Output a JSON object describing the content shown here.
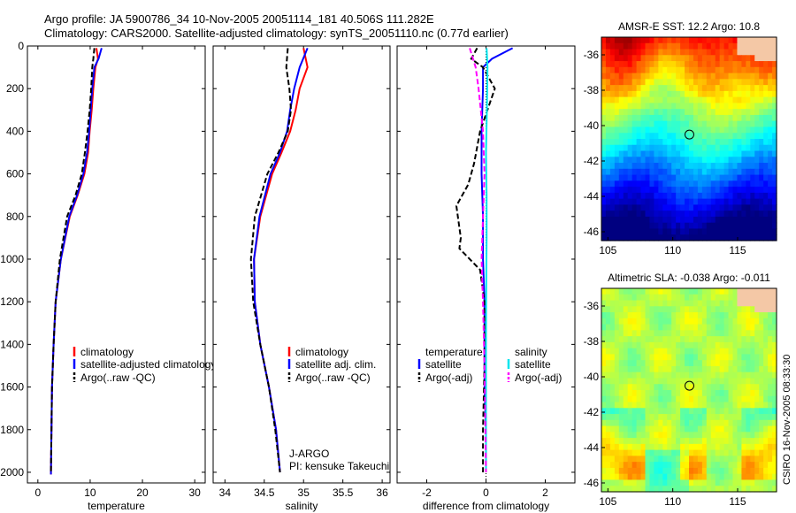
{
  "header": {
    "line1": "Argo profile: JA 5900786_34 10-Nov-2005 20051114_181 40.506S 111.282E",
    "line2": "Climatology: CARS2000. Satellite-adjusted climatology: synTS_20051110.nc (0.77d earlier)"
  },
  "credit": "CSIRO 16-Nov-2005 08:33:30",
  "colors": {
    "clim": "#ff0000",
    "sat": "#0000ff",
    "argo": "#000000",
    "sat_sal": "#00e5ee",
    "argo_sal": "#ff00ff"
  },
  "chart_data": [
    {
      "type": "line",
      "id": "temperature",
      "xlabel": "temperature",
      "ylabel": "",
      "xlim": [
        -2,
        32
      ],
      "ylim": [
        2050,
        0
      ],
      "xticks": [
        0,
        10,
        20,
        30
      ],
      "yticks": [
        0,
        200,
        400,
        600,
        800,
        1000,
        1200,
        1400,
        1600,
        1800,
        2000
      ],
      "series": [
        {
          "name": "climatology",
          "style": "solid",
          "color": "#ff0000",
          "x": [
            11.2,
            11.5,
            11.0,
            10.6,
            10.3,
            9.9,
            9.6,
            8.9,
            7.6,
            6.1,
            4.4,
            3.4,
            3.0,
            2.7,
            2.6,
            2.5,
            2.5
          ],
          "y": [
            10,
            60,
            100,
            200,
            300,
            400,
            500,
            600,
            700,
            800,
            1000,
            1200,
            1400,
            1600,
            1800,
            2000,
            2010
          ]
        },
        {
          "name": "satellite-adjusted climatology",
          "style": "solid",
          "color": "#0000ff",
          "x": [
            12.2,
            11.6,
            10.8,
            10.4,
            10.1,
            9.8,
            9.4,
            8.7,
            7.5,
            6.0,
            4.4,
            3.4,
            3.0,
            2.7,
            2.6,
            2.5,
            2.5
          ],
          "y": [
            10,
            60,
            100,
            200,
            300,
            400,
            500,
            600,
            700,
            800,
            1000,
            1200,
            1400,
            1600,
            1800,
            2000,
            2010
          ]
        },
        {
          "name": "Argo(..raw -QC)",
          "style": "dashed",
          "color": "#000000",
          "x": [
            10.8,
            10.6,
            10.4,
            10.2,
            9.9,
            9.5,
            9.0,
            8.4,
            7.2,
            5.6,
            4.2,
            3.4,
            3.0,
            2.7,
            2.6,
            2.5
          ],
          "y": [
            10,
            60,
            100,
            200,
            300,
            400,
            500,
            600,
            700,
            800,
            1000,
            1200,
            1400,
            1600,
            1800,
            2000
          ]
        }
      ],
      "legend": [
        "climatology",
        "satellite-adjusted climatology",
        "Argo(..raw -QC)"
      ]
    },
    {
      "type": "line",
      "id": "salinity",
      "xlabel": "salinity",
      "ylabel": "",
      "xlim": [
        33.85,
        36.1
      ],
      "ylim": [
        2050,
        0
      ],
      "xticks": [
        34,
        34.5,
        35,
        35.5,
        36
      ],
      "series": [
        {
          "name": "climatology",
          "style": "solid",
          "color": "#ff0000",
          "x": [
            35.0,
            35.05,
            34.95,
            34.9,
            34.83,
            34.72,
            34.6,
            34.45,
            34.37,
            34.38,
            34.45,
            34.56,
            34.65,
            34.7
          ],
          "y": [
            10,
            100,
            200,
            300,
            400,
            500,
            600,
            800,
            1000,
            1200,
            1400,
            1600,
            1800,
            2000
          ]
        },
        {
          "name": "satellite adj. clim.",
          "style": "solid",
          "color": "#0000ff",
          "x": [
            35.05,
            34.95,
            34.88,
            34.83,
            34.79,
            34.7,
            34.58,
            34.44,
            34.37,
            34.38,
            34.45,
            34.56,
            34.65,
            34.7
          ],
          "y": [
            10,
            100,
            200,
            300,
            400,
            500,
            600,
            800,
            1000,
            1200,
            1400,
            1600,
            1800,
            2000
          ]
        },
        {
          "name": "Argo(..raw -QC)",
          "style": "dashed",
          "color": "#000000",
          "x": [
            34.8,
            34.78,
            34.82,
            34.84,
            34.8,
            34.68,
            34.54,
            34.38,
            34.33,
            34.36,
            34.45,
            34.56,
            34.64,
            34.7
          ],
          "y": [
            10,
            100,
            200,
            300,
            400,
            500,
            600,
            800,
            1000,
            1200,
            1400,
            1600,
            1800,
            2000
          ]
        }
      ],
      "legend": [
        "climatology",
        "satellite adj. clim.",
        "Argo(..raw -QC)"
      ],
      "annotation": [
        "J-ARGO",
        "PI: kensuke Takeuchi"
      ]
    },
    {
      "type": "line",
      "id": "difference",
      "xlabel": "difference from climatology",
      "ylabel": "",
      "xlim": [
        -3,
        3
      ],
      "ylim": [
        2050,
        0
      ],
      "xticks": [
        -2,
        0,
        2
      ],
      "zero_line": true,
      "series": [
        {
          "name": "temperature satellite",
          "style": "solid",
          "color": "#0000ff",
          "x": [
            0.9,
            0.2,
            -0.1,
            -0.1,
            -0.15,
            -0.15,
            -0.1,
            -0.1,
            -0.05,
            -0.05,
            -0.05,
            0.0,
            0.0
          ],
          "y": [
            10,
            60,
            100,
            200,
            400,
            600,
            800,
            1000,
            1200,
            1400,
            1600,
            1800,
            2000
          ]
        },
        {
          "name": "temperature Argo(-adj)",
          "style": "dashed",
          "color": "#000000",
          "x": [
            -0.3,
            -0.5,
            -0.1,
            0.3,
            -0.2,
            -0.4,
            -0.6,
            -1.0,
            -0.85,
            -0.9,
            -0.2,
            -0.05,
            -0.05,
            -0.1,
            -0.1
          ],
          "y": [
            10,
            60,
            100,
            200,
            400,
            550,
            650,
            750,
            900,
            950,
            1050,
            1200,
            1500,
            1800,
            2000
          ]
        },
        {
          "name": "salinity satellite",
          "style": "solid",
          "color": "#00e5ee",
          "x": [
            0.02,
            0.05,
            0.03,
            0.0,
            0.02,
            0.02,
            0.01,
            0.0,
            0.0,
            0.0
          ],
          "y": [
            10,
            100,
            300,
            500,
            700,
            900,
            1100,
            1400,
            1700,
            2000
          ]
        },
        {
          "name": "salinity Argo(-adj)",
          "style": "dashed",
          "color": "#ff00ff",
          "x": [
            -0.55,
            -0.35,
            -0.25,
            -0.1,
            -0.05,
            -0.1,
            -0.15,
            -0.1,
            -0.05,
            0.0
          ],
          "y": [
            10,
            100,
            200,
            400,
            600,
            800,
            1000,
            1200,
            1500,
            2000
          ]
        }
      ],
      "legend_headers": [
        "temperature",
        "salinity"
      ],
      "legend": [
        "satellite",
        "Argo(-adj)",
        "satellite",
        "Argo(-adj)"
      ]
    },
    {
      "type": "heatmap",
      "id": "sst-map",
      "title": "AMSR-E SST: 12.2 Argo: 10.8",
      "xlim": [
        104.5,
        118
      ],
      "ylim": [
        -46.5,
        -35
      ],
      "xticks": [
        105,
        110,
        115
      ],
      "yticks": [
        -36,
        -38,
        -40,
        -42,
        -44,
        -46
      ],
      "colormap": "jet",
      "value_range": [
        8,
        18
      ],
      "marker": {
        "lon": 111.282,
        "lat": -40.506
      }
    },
    {
      "type": "heatmap",
      "id": "sla-map",
      "title": "Altimetric SLA: -0.038 Argo: -0.011",
      "xlim": [
        104.5,
        118
      ],
      "ylim": [
        -46.5,
        -35
      ],
      "xticks": [
        105,
        110,
        115
      ],
      "yticks": [
        -36,
        -38,
        -40,
        -42,
        -44,
        -46
      ],
      "colormap": "jet",
      "value_range": [
        -0.3,
        0.3
      ],
      "marker": {
        "lon": 111.282,
        "lat": -40.506
      }
    }
  ]
}
